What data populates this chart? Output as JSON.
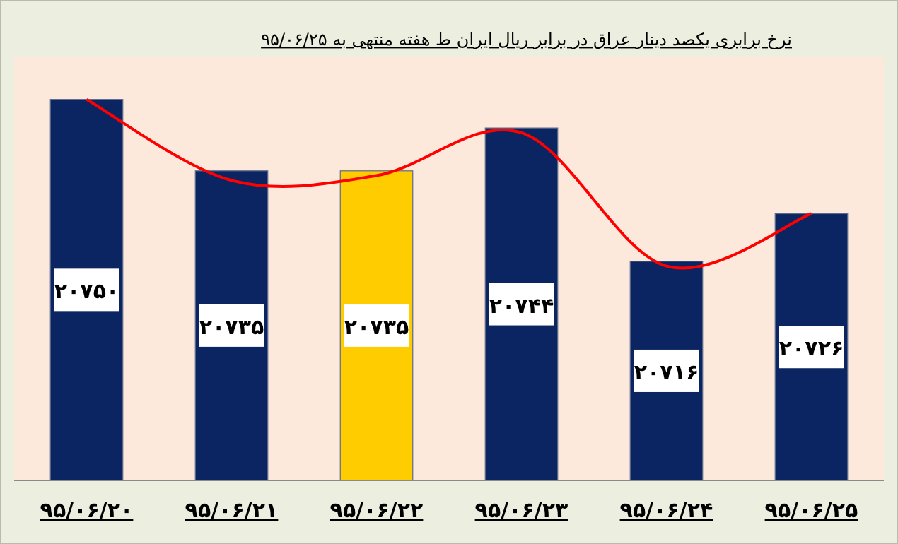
{
  "chart_data": {
    "type": "bar",
    "title": "نرخ برابری یکصد دینار عراق در برابر ریال ایران ط هفته منتهی به ۹۵/۰۶/۲۵",
    "categories": [
      "۹۵/۰۶/۲۰",
      "۹۵/۰۶/۲۱",
      "۹۵/۰۶/۲۲",
      "۹۵/۰۶/۲۳",
      "۹۵/۰۶/۲۴",
      "۹۵/۰۶/۲۵"
    ],
    "series": [
      {
        "colors": [
          "#0b2562",
          "#0b2562",
          "#ffcc00",
          "#0b2562",
          "#0b2562",
          "#0b2562"
        ],
        "values": [
          20750,
          20735,
          20735,
          20744,
          20716,
          20726
        ],
        "value_labels": [
          "۲۰۷۵۰",
          "۲۰۷۳۵",
          "۲۰۷۳۵",
          "۲۰۷۴۴",
          "۲۰۷۱۶",
          "۲۰۷۲۶"
        ]
      },
      {
        "type": "line",
        "color": "#ff0000",
        "values": [
          20750,
          20733,
          20734,
          20743,
          20715,
          20726
        ]
      }
    ],
    "ylim": [
      20670,
      20759
    ],
    "tick_labels": "x"
  }
}
